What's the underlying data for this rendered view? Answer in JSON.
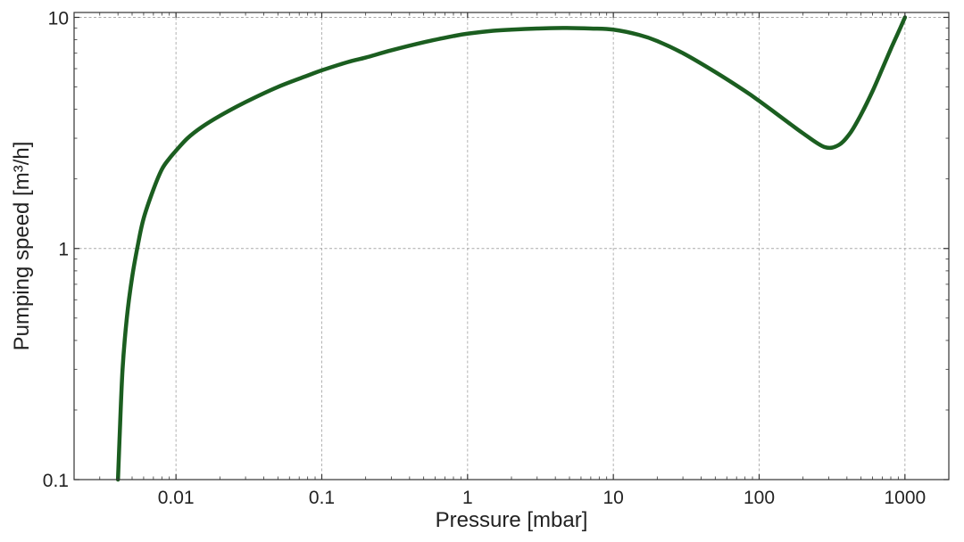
{
  "chart_data": {
    "type": "line",
    "xlabel": "Pressure [mbar]",
    "ylabel": "Pumping speed [m³/h]",
    "xscale": "log",
    "yscale": "log",
    "xlim": [
      0.002,
      2000
    ],
    "ylim": [
      0.1,
      10.5
    ],
    "grid": true,
    "x_ticks": [
      0.01,
      0.1,
      1,
      10,
      100,
      1000
    ],
    "x_tick_labels": [
      "0.01",
      "0.1",
      "1",
      "10",
      "100",
      "1000"
    ],
    "y_ticks": [
      0.1,
      1,
      10
    ],
    "y_tick_labels": [
      "0.1",
      "1",
      "10"
    ],
    "colors": {
      "line": "#1b5e20",
      "grid": "#aaaaaa",
      "frame": "#333333"
    },
    "series": [
      {
        "x": [
          0.004,
          0.0041,
          0.0043,
          0.0046,
          0.005,
          0.0055,
          0.006,
          0.007,
          0.008,
          0.009,
          0.01,
          0.012,
          0.015,
          0.02,
          0.03,
          0.05,
          0.08,
          0.1,
          0.15,
          0.2,
          0.3,
          0.5,
          0.8,
          1,
          1.5,
          2,
          3,
          4.5,
          7,
          10,
          15,
          20,
          30,
          50,
          80,
          100,
          150,
          200,
          280,
          350,
          420,
          500,
          600,
          700,
          800,
          900,
          1000
        ],
        "values": [
          0.1,
          0.15,
          0.3,
          0.5,
          0.75,
          1.05,
          1.35,
          1.8,
          2.2,
          2.45,
          2.65,
          3.0,
          3.35,
          3.75,
          4.3,
          5.0,
          5.6,
          5.9,
          6.4,
          6.7,
          7.2,
          7.8,
          8.3,
          8.5,
          8.75,
          8.85,
          8.95,
          9.0,
          8.95,
          8.85,
          8.4,
          7.9,
          7.0,
          5.8,
          4.8,
          4.35,
          3.6,
          3.15,
          2.75,
          2.8,
          3.15,
          3.8,
          4.8,
          6.0,
          7.3,
          8.6,
          10.0
        ]
      }
    ]
  }
}
